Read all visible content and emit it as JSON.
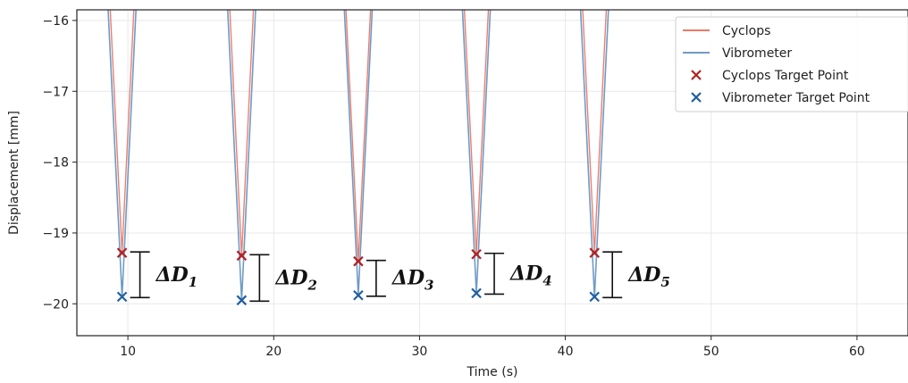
{
  "chart_data": {
    "type": "line",
    "xlabel": "Time (s)",
    "ylabel": "Displacement [mm]",
    "xlim": [
      6.5,
      63.5
    ],
    "ylim": [
      -20.45,
      -15.85
    ],
    "xticks": [
      10,
      20,
      30,
      40,
      50,
      60
    ],
    "yticks": [
      -16,
      -17,
      -18,
      -19,
      -20
    ],
    "grid": true,
    "legend_position": "top-right",
    "colors": {
      "cyclops": "#e8796b",
      "vibrometer": "#6f9bc4",
      "cyclops_target": "#b22222",
      "vibrometer_target": "#1f5f9f",
      "bracket": "#111111"
    },
    "series": [
      {
        "name": "Cyclops",
        "kind": "line"
      },
      {
        "name": "Vibrometer",
        "kind": "line"
      },
      {
        "name": "Cyclops Target Point",
        "kind": "marker",
        "marker": "x",
        "x": [
          9.6,
          17.8,
          25.8,
          33.9,
          42.0
        ],
        "y": [
          -19.28,
          -19.32,
          -19.4,
          -19.3,
          -19.28
        ]
      },
      {
        "name": "Vibrometer Target Point",
        "kind": "marker",
        "marker": "x",
        "x": [
          9.6,
          17.8,
          25.8,
          33.9,
          42.0
        ],
        "y": [
          -19.9,
          -19.95,
          -19.88,
          -19.85,
          -19.9
        ]
      }
    ],
    "dips": [
      {
        "t": 9.6,
        "cyclops_min": -19.28,
        "vibrometer_min": -19.9,
        "half_width": 1.05
      },
      {
        "t": 17.8,
        "cyclops_min": -19.32,
        "vibrometer_min": -19.95,
        "half_width": 1.05
      },
      {
        "t": 25.8,
        "cyclops_min": -19.4,
        "vibrometer_min": -19.88,
        "half_width": 1.05
      },
      {
        "t": 33.9,
        "cyclops_min": -19.3,
        "vibrometer_min": -19.85,
        "half_width": 1.05
      },
      {
        "t": 42.0,
        "cyclops_min": -19.28,
        "vibrometer_min": -19.9,
        "half_width": 1.05
      }
    ],
    "annotations": [
      {
        "label": "ΔD",
        "sub": "1"
      },
      {
        "label": "ΔD",
        "sub": "2"
      },
      {
        "label": "ΔD",
        "sub": "3"
      },
      {
        "label": "ΔD",
        "sub": "4"
      },
      {
        "label": "ΔD",
        "sub": "5"
      }
    ]
  }
}
